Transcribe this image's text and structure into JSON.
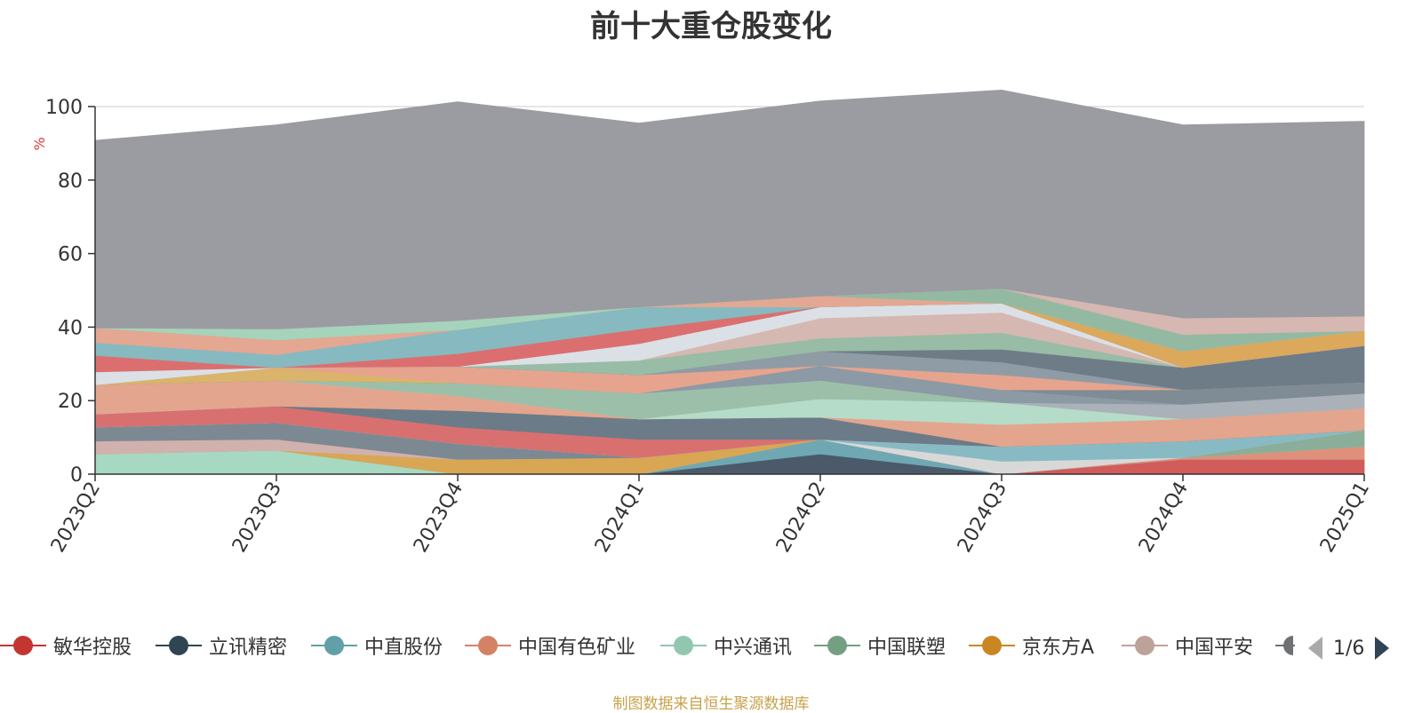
{
  "chart_data": {
    "type": "area",
    "title": "前十大重仓股变化",
    "ylabel": "%",
    "ylim": [
      0,
      100
    ],
    "y_ticks": [
      "0",
      "20",
      "40",
      "60",
      "80",
      "100"
    ],
    "categories": [
      "2023Q2",
      "2023Q3",
      "2023Q4",
      "2024Q1",
      "2024Q2",
      "2024Q3",
      "2024Q4",
      "2025Q1"
    ],
    "series": [
      {
        "name": "敏华控股",
        "color": "#d25b5b",
        "values": [
          0,
          0,
          0,
          0,
          0,
          0,
          4,
          4
        ]
      },
      {
        "name": "立讯精密",
        "color": "#4a5a6a",
        "values": [
          0,
          0,
          0,
          0,
          5.5,
          0,
          0,
          0
        ]
      },
      {
        "name": "中直股份",
        "color": "#6fa8b3",
        "values": [
          0,
          0,
          0,
          0,
          4,
          0,
          0,
          0
        ]
      },
      {
        "name": "中国有色矿业",
        "color": "#e0907a",
        "values": [
          0,
          0,
          0,
          0,
          0,
          0,
          0.5,
          3.5
        ]
      },
      {
        "name": "中兴通讯",
        "color": "#a7d8c1",
        "values": [
          5.5,
          6.5,
          0,
          0,
          0,
          0,
          0,
          0
        ]
      },
      {
        "name": "中国联塑",
        "color": "#8aae99",
        "values": [
          0,
          0,
          0,
          0,
          0,
          0,
          0,
          4.5
        ]
      },
      {
        "name": "京东方A",
        "color": "#d9a654",
        "values": [
          0,
          0,
          4,
          4.5,
          0,
          0,
          0,
          0
        ]
      },
      {
        "name": "中国平安",
        "color": "#d1b1ad",
        "values": [
          3.5,
          3,
          0,
          0,
          0,
          0,
          0,
          0
        ]
      },
      {
        "name": "",
        "color": "#7c8993",
        "values": [
          3.8,
          4.5,
          4.3,
          0,
          0,
          0,
          0,
          0
        ]
      },
      {
        "name": "",
        "color": "#d9d8d8",
        "values": [
          0,
          0,
          0,
          0,
          0,
          3.5,
          0,
          0
        ]
      },
      {
        "name": "",
        "color": "#88bac4",
        "values": [
          0,
          0,
          0,
          0,
          0,
          4,
          4.5,
          0
        ]
      },
      {
        "name": "",
        "color": "#d87070",
        "values": [
          3.5,
          4.5,
          4.5,
          5,
          0,
          0,
          0,
          0
        ]
      },
      {
        "name": "",
        "color": "#6c7b88",
        "values": [
          0,
          0,
          4.5,
          5.5,
          6,
          0,
          0,
          0
        ]
      },
      {
        "name": "",
        "color": "#e3a58e",
        "values": [
          8,
          7,
          4,
          0,
          0,
          6,
          6,
          6
        ]
      },
      {
        "name": "",
        "color": "#b5dcc8",
        "values": [
          0,
          0,
          0,
          0,
          5,
          6,
          0,
          0
        ]
      },
      {
        "name": "",
        "color": "#9cbfa9",
        "values": [
          0,
          0,
          3.5,
          7,
          5,
          0,
          0,
          0
        ]
      },
      {
        "name": "",
        "color": "#aab1b8",
        "values": [
          0,
          0,
          0,
          0,
          0,
          0,
          4,
          4
        ]
      },
      {
        "name": "",
        "color": "#8b9aa5",
        "values": [
          0,
          0,
          0,
          0,
          4,
          3.5,
          0,
          0
        ]
      },
      {
        "name": "",
        "color": "#7f8b95",
        "values": [
          0,
          0,
          0,
          0,
          0,
          0,
          4,
          3
        ]
      },
      {
        "name": "",
        "color": "#dab46a",
        "values": [
          0,
          3.5,
          0,
          0,
          0,
          0,
          0,
          0
        ]
      },
      {
        "name": "",
        "color": "#e6a48e",
        "values": [
          0,
          0,
          4.5,
          5,
          0,
          4,
          0,
          0
        ]
      },
      {
        "name": "",
        "color": "#8f9ca6",
        "values": [
          0,
          0,
          0,
          0,
          4,
          3.5,
          0,
          0
        ]
      },
      {
        "name": "",
        "color": "#6e7c88",
        "values": [
          0,
          0,
          0,
          0,
          0,
          3.5,
          6,
          10
        ]
      },
      {
        "name": "",
        "color": "#98bca6",
        "values": [
          0,
          0,
          0,
          4,
          3.5,
          4.5,
          0,
          0
        ]
      },
      {
        "name": "",
        "color": "#d5b8b2",
        "values": [
          0,
          0,
          0,
          0,
          5.5,
          5.5,
          0,
          0
        ]
      },
      {
        "name": "",
        "color": "#dbe0e6",
        "values": [
          3.5,
          0,
          0,
          4.5,
          3,
          2.5,
          0,
          0
        ]
      },
      {
        "name": "",
        "color": "#db6f6f",
        "values": [
          4.5,
          0,
          3.5,
          4,
          0,
          0,
          0,
          0
        ]
      },
      {
        "name": "",
        "color": "#87b9c1",
        "values": [
          3.5,
          3.5,
          6.5,
          6,
          0,
          0,
          0,
          0
        ]
      },
      {
        "name": "",
        "color": "#e3a792",
        "values": [
          4,
          4,
          0,
          0,
          3,
          0,
          0,
          0
        ]
      },
      {
        "name": "",
        "color": "#dca85c",
        "values": [
          0,
          0,
          0,
          0,
          0,
          0,
          4.5,
          4
        ]
      },
      {
        "name": "",
        "color": "#a6d3bc",
        "values": [
          0,
          3,
          2.5,
          0,
          0,
          0,
          0,
          0
        ]
      },
      {
        "name": "",
        "color": "#94b9a2",
        "values": [
          0,
          0,
          0,
          0,
          0,
          4,
          4.5,
          0
        ]
      },
      {
        "name": "",
        "color": "#d6b7b1",
        "values": [
          0,
          0,
          0,
          0,
          0,
          0,
          4.5,
          4
        ]
      },
      {
        "name": "",
        "color": "#9a9ca1",
        "values": [
          51,
          55.5,
          59.5,
          50,
          53,
          54,
          52.5,
          53
        ]
      }
    ]
  },
  "legend": {
    "items": [
      {
        "label": "敏华控股",
        "color": "#c23531"
      },
      {
        "label": "立讯精密",
        "color": "#2f4554"
      },
      {
        "label": "中直股份",
        "color": "#61a0a8"
      },
      {
        "label": "中国有色矿业",
        "color": "#d48265"
      },
      {
        "label": "中兴通讯",
        "color": "#91c7ae"
      },
      {
        "label": "中国联塑",
        "color": "#749f83"
      },
      {
        "label": "京东方A",
        "color": "#ca8622"
      },
      {
        "label": "中国平安",
        "color": "#bda29a"
      }
    ],
    "partial_color": "#6e7074",
    "page_indicator": "1/6"
  },
  "source_note": "制图数据来自恒生聚源数据库"
}
